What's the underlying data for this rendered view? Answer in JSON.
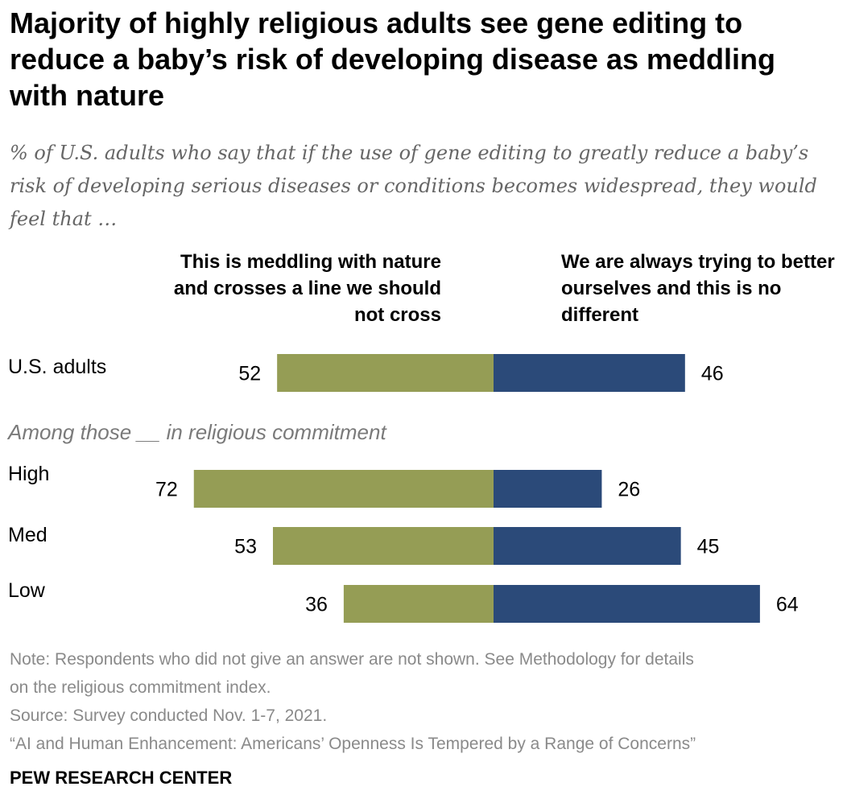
{
  "title": "Majority of highly religious adults see gene editing to reduce a baby’s risk of developing disease as meddling with nature",
  "subtitle": "% of U.S. adults who say that if the use of gene editing to greatly reduce a baby’s risk of developing serious diseases or conditions becomes widespread, they would feel that …",
  "section_label": "Among those __ in religious commitment",
  "notes": {
    "note_line1": "Note: Respondents who did not give an answer are not shown. See Methodology for details",
    "note_line2": "on the religious commitment index.",
    "source": "Source: Survey conducted Nov. 1-7, 2021.",
    "report": "“AI and Human Enhancement: Americans’ Openness Is Tempered by a Range of Concerns”"
  },
  "brand": "PEW RESEARCH CENTER",
  "chart_data": {
    "type": "bar",
    "orientation": "horizontal-diverging",
    "series": [
      {
        "name": "This is meddling with nature and crosses a line we should not cross",
        "color": "#959d55",
        "values": [
          52,
          72,
          53,
          36
        ]
      },
      {
        "name": "We are always trying to better ourselves and this is no different",
        "color": "#2b4a79",
        "values": [
          46,
          26,
          45,
          64
        ]
      }
    ],
    "categories": [
      "U.S. adults",
      "High",
      "Med",
      "Low"
    ],
    "legend_placement": "top",
    "grid": false
  }
}
